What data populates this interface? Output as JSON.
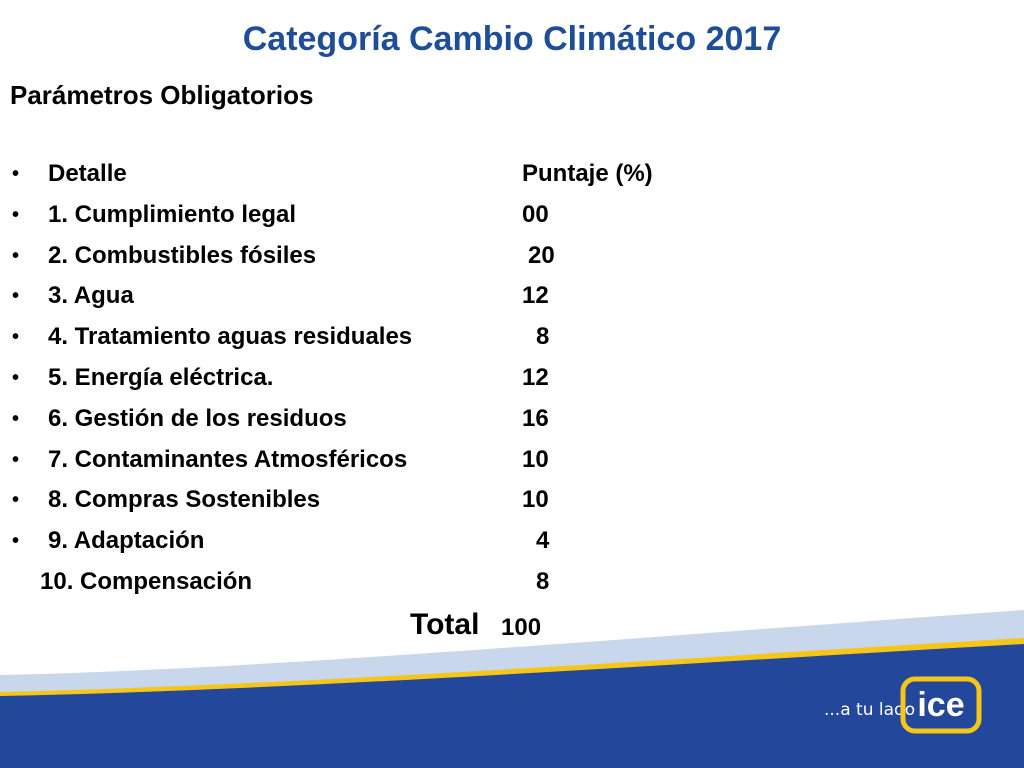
{
  "slide": {
    "title": "Categoría Cambio Climático 2017",
    "subtitle": "Parámetros Obligatorios"
  },
  "table": {
    "header": {
      "label": "Detalle",
      "value": "Puntaje (%)"
    },
    "rows": [
      {
        "label": "1. Cumplimiento legal",
        "value": "00"
      },
      {
        "label": "2. Combustibles fósiles",
        "value": "20"
      },
      {
        "label": "3. Agua",
        "value": "12"
      },
      {
        "label": "4. Tratamiento aguas residuales",
        "value": "8"
      },
      {
        "label": "5. Energía eléctrica.",
        "value": "12"
      },
      {
        "label": "6. Gestión de los residuos",
        "value": "16"
      },
      {
        "label": "7. Contaminantes Atmosféricos",
        "value": "10"
      },
      {
        "label": "8. Compras Sostenibles",
        "value": "10"
      },
      {
        "label": "9. Adaptación",
        "value": "4"
      },
      {
        "label": "10. Compensación",
        "value": "8"
      }
    ],
    "total_label": "Total",
    "total_value": "100"
  },
  "branding": {
    "tagline": "...a tu lado",
    "logo_text": "ice",
    "colors": {
      "title": "#1F4E99",
      "wave_dark": "#23479B",
      "wave_light": "#C9D7EC",
      "wave_yellow": "#F5C518"
    }
  }
}
